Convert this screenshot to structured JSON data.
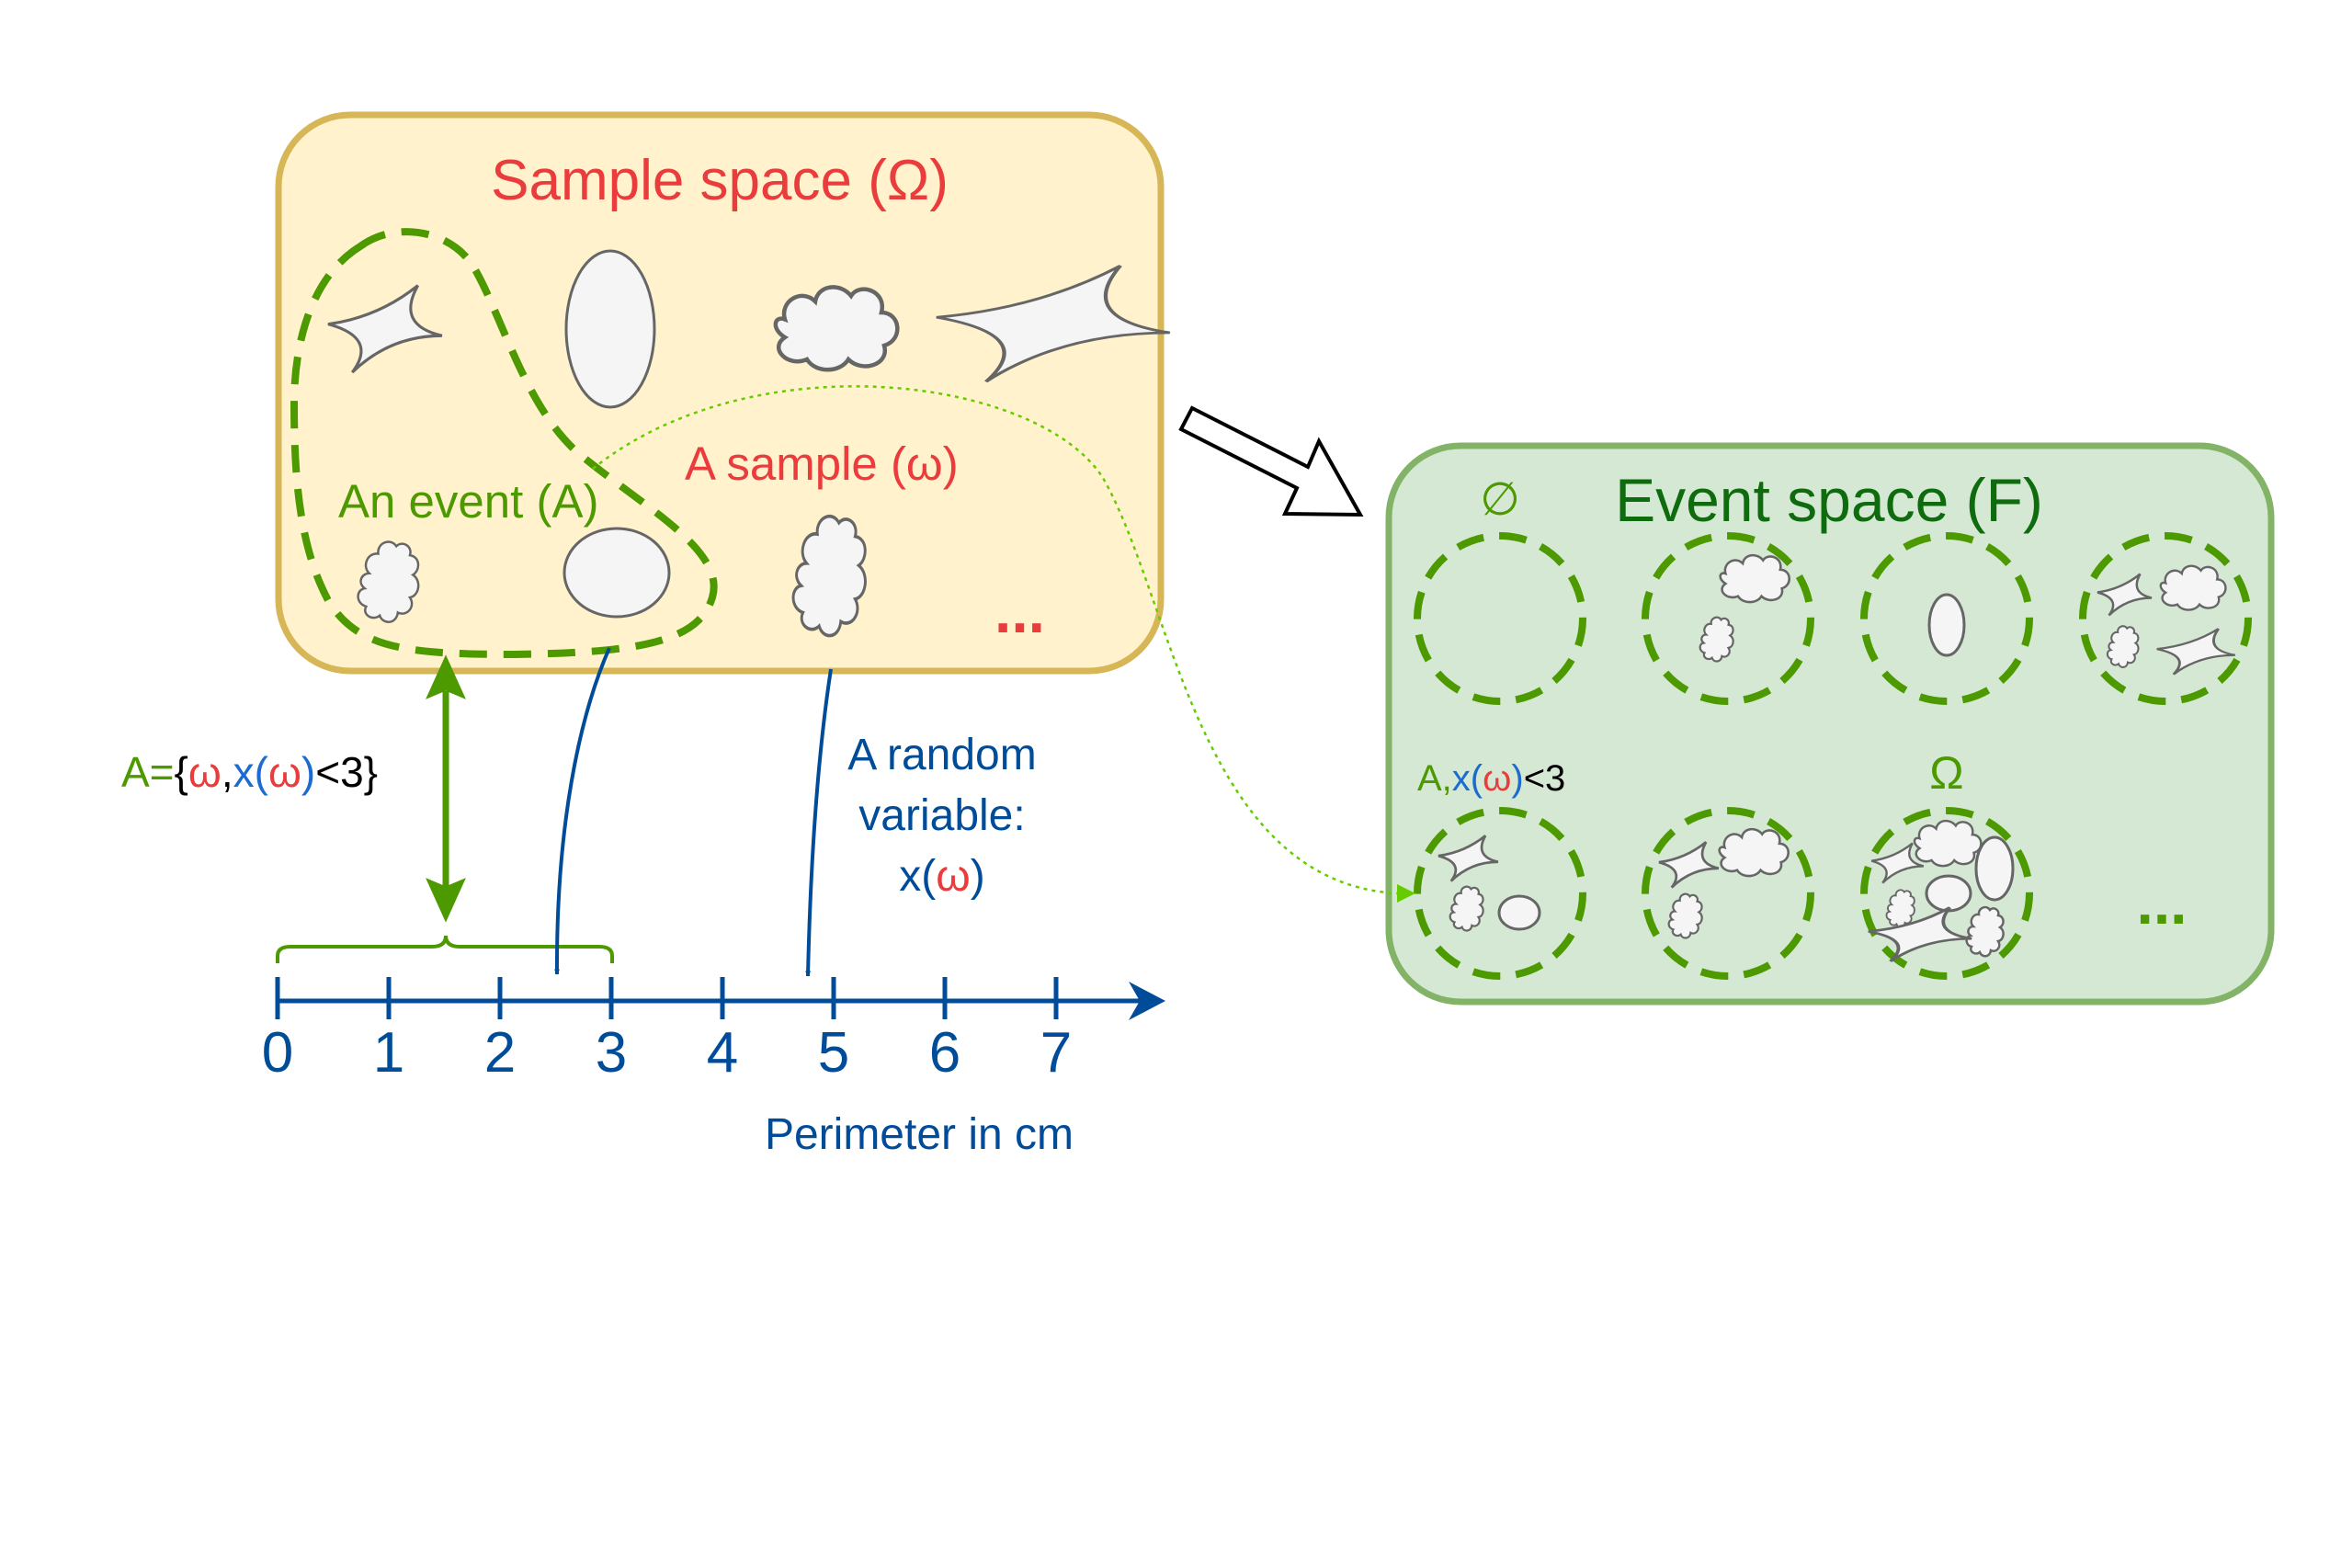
{
  "sample_space": {
    "title": "Sample space (Ω)",
    "event_label": "An event (A)",
    "sample_label": "A sample (ω)",
    "ellipsis": "...",
    "fill": "#fff2cc",
    "stroke": "#d6b656"
  },
  "event_space": {
    "title": "Event space (F)",
    "empty_set": "∅",
    "omega": "Ω",
    "event_A_prefix": "A,",
    "event_A_x": "x(",
    "event_A_w": "ω",
    "event_A_close": ")",
    "event_A_suffix": "<3",
    "ellipsis": "...",
    "fill": "#d5e8d4",
    "stroke": "#82b366"
  },
  "set_definition": {
    "a_eq": "A=",
    "brace_open": "{",
    "omega": "ω",
    "comma": ",",
    "x_open": "x(",
    "omega2": "ω",
    "x_close": ")",
    "suffix": "<3}"
  },
  "random_variable": {
    "line1": "A random",
    "line2": "variable:",
    "x_open": "x(",
    "omega": "ω",
    "x_close": ")"
  },
  "axis": {
    "ticks": [
      "0",
      "1",
      "2",
      "3",
      "4",
      "5",
      "6",
      "7"
    ],
    "label": "Perimeter in cm",
    "color": "#004c99"
  },
  "colors": {
    "red": "#ea3c3c",
    "green": "#4d9900",
    "dark_green": "#0e6b0e",
    "blue": "#004c99",
    "x_blue": "#1c6bd0",
    "shape_fill": "#f5f5f5",
    "shape_stroke": "#666666"
  }
}
